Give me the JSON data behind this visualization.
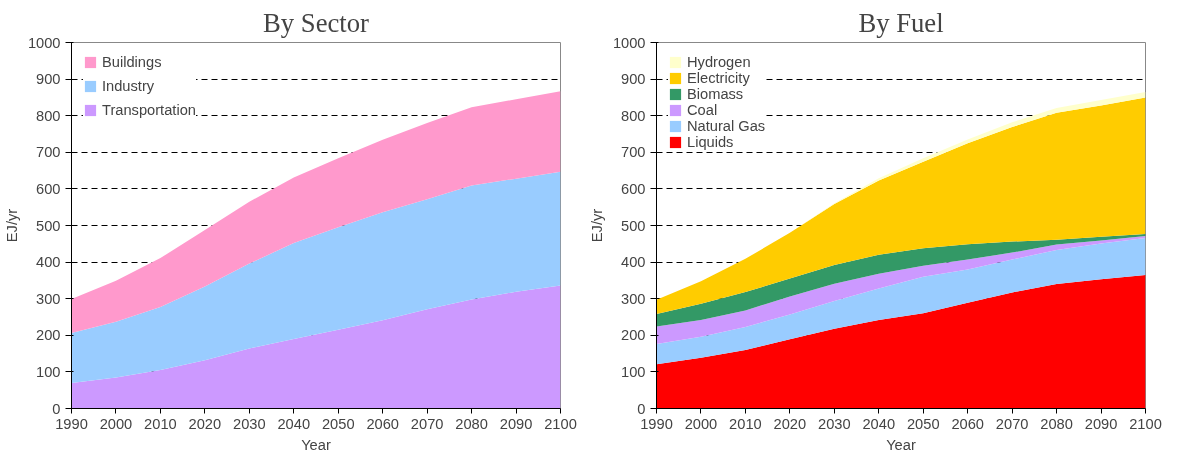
{
  "chart_data": [
    {
      "type": "area",
      "stacked": true,
      "title": "By Sector",
      "xlabel": "Year",
      "ylabel": "EJ/yr",
      "x": [
        1990,
        2000,
        2010,
        2020,
        2030,
        2040,
        2050,
        2060,
        2070,
        2080,
        2090,
        2100
      ],
      "series": [
        {
          "name": "Transportation",
          "color": "#cc99ff",
          "values": [
            70,
            85,
            105,
            132,
            164,
            190,
            215,
            241,
            271,
            298,
            319,
            336
          ]
        },
        {
          "name": "Industry",
          "color": "#99ccff",
          "values": [
            136,
            152,
            172,
            201,
            232,
            262,
            280,
            295,
            301,
            311,
            309,
            311
          ]
        },
        {
          "name": "Buildings",
          "color": "#ff99cc",
          "values": [
            93,
            112,
            134,
            155,
            169,
            179,
            189,
            198,
            208,
            214,
            217,
            220
          ]
        }
      ],
      "xlim": [
        1990,
        2100
      ],
      "xticks": [
        1990,
        2000,
        2010,
        2020,
        2030,
        2040,
        2050,
        2060,
        2070,
        2080,
        2090,
        2100
      ],
      "ylim": [
        0,
        1000
      ],
      "yticks": [
        0,
        100,
        200,
        300,
        400,
        500,
        600,
        700,
        800,
        900,
        1000
      ],
      "grid": "y",
      "legend": "top left"
    },
    {
      "type": "area",
      "stacked": true,
      "title": "By Fuel",
      "xlabel": "Year",
      "ylabel": "EJ/yr",
      "x": [
        1990,
        2000,
        2010,
        2020,
        2030,
        2040,
        2050,
        2060,
        2070,
        2080,
        2090,
        2100
      ],
      "series": [
        {
          "name": "Liquids",
          "color": "#ff0000",
          "values": [
            121,
            139,
            160,
            189,
            218,
            242,
            260,
            289,
            317,
            340,
            353,
            365
          ]
        },
        {
          "name": "Natural Gas",
          "color": "#99ccff",
          "values": [
            55,
            57,
            63,
            68,
            76,
            86,
            100,
            91,
            90,
            93,
            98,
            101
          ]
        },
        {
          "name": "Coal",
          "color": "#cc99ff",
          "values": [
            48,
            46,
            45,
            49,
            47,
            40,
            30,
            27,
            19,
            15,
            8,
            5
          ]
        },
        {
          "name": "Biomass",
          "color": "#339966",
          "values": [
            34,
            44,
            50,
            49,
            51,
            52,
            48,
            42,
            30,
            13,
            10,
            6
          ]
        },
        {
          "name": "Electricity",
          "color": "#ffcc00",
          "values": [
            39,
            62,
            91,
            125,
            167,
            203,
            236,
            276,
            313,
            347,
            359,
            373
          ]
        },
        {
          "name": "Hydrogen",
          "color": "#ffffcc",
          "values": [
            0,
            0,
            0,
            0,
            2,
            6,
            10,
            10,
            13,
            13,
            15,
            15
          ]
        }
      ],
      "xlim": [
        1990,
        2100
      ],
      "xticks": [
        1990,
        2000,
        2010,
        2020,
        2030,
        2040,
        2050,
        2060,
        2070,
        2080,
        2090,
        2100
      ],
      "ylim": [
        0,
        1000
      ],
      "yticks": [
        0,
        100,
        200,
        300,
        400,
        500,
        600,
        700,
        800,
        900,
        1000
      ],
      "grid": "y",
      "legend": "top left"
    }
  ]
}
